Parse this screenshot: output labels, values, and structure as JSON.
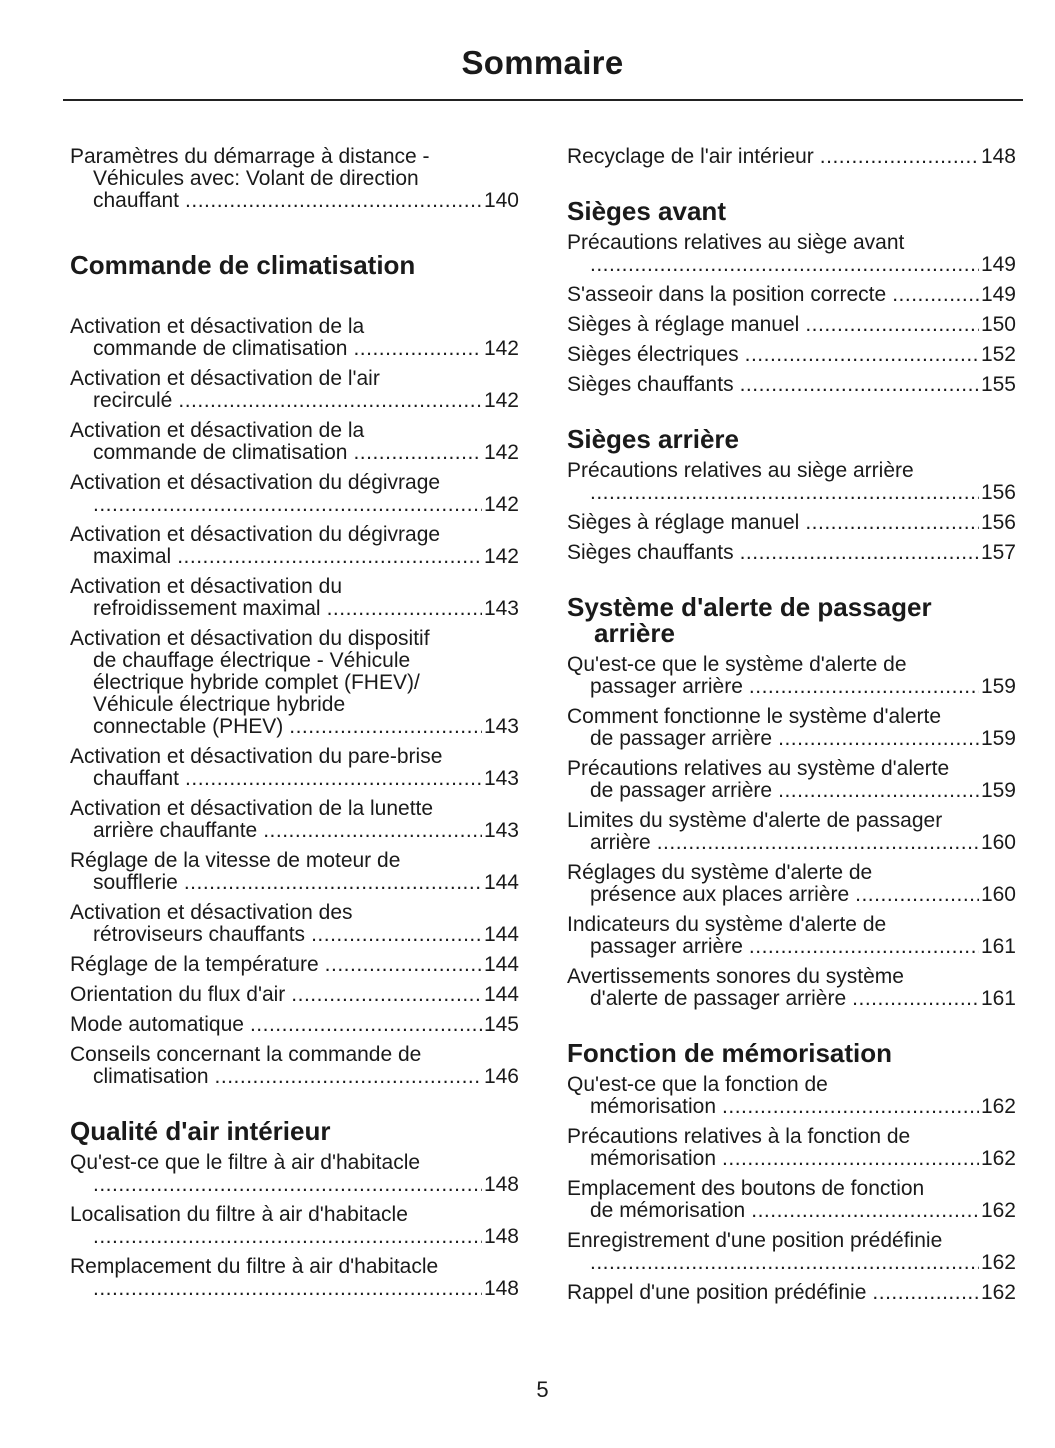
{
  "title": "Sommaire",
  "page_number": "5",
  "left": [
    {
      "type": "entry",
      "lines": [
        "Paramètres du démarrage à distance -",
        "Véhicules avec: Volant de direction",
        "chauffant"
      ],
      "page": "140"
    },
    {
      "type": "heading",
      "lines": [
        "Commande de climatisation"
      ]
    },
    {
      "type": "entry",
      "lines": [
        "Activation et désactivation de la",
        "commande de climatisation"
      ],
      "page": "142"
    },
    {
      "type": "entry",
      "lines": [
        "Activation et désactivation de l'air",
        "recirculé"
      ],
      "page": "142"
    },
    {
      "type": "entry",
      "lines": [
        "Activation et désactivation de la",
        "commande de climatisation"
      ],
      "page": "142"
    },
    {
      "type": "entry",
      "lines": [
        "Activation et désactivation du dégivrage",
        ""
      ],
      "page": "142"
    },
    {
      "type": "entry",
      "lines": [
        "Activation et désactivation du dégivrage",
        "maximal"
      ],
      "page": "142"
    },
    {
      "type": "entry",
      "lines": [
        "Activation et désactivation du",
        "refroidissement maximal"
      ],
      "page": "143"
    },
    {
      "type": "entry",
      "lines": [
        "Activation et désactivation du dispositif",
        "de chauffage électrique - Véhicule",
        "électrique hybride complet (FHEV)/",
        "Véhicule électrique hybride",
        "connectable (PHEV)"
      ],
      "page": "143"
    },
    {
      "type": "entry",
      "lines": [
        "Activation et désactivation du pare-brise",
        "chauffant"
      ],
      "page": "143"
    },
    {
      "type": "entry",
      "lines": [
        "Activation et désactivation de la lunette",
        "arrière chauffante"
      ],
      "page": "143"
    },
    {
      "type": "entry",
      "lines": [
        "Réglage de la vitesse de moteur de",
        "soufflerie"
      ],
      "page": "144"
    },
    {
      "type": "entry",
      "lines": [
        "Activation et désactivation des",
        "rétroviseurs chauffants"
      ],
      "page": "144"
    },
    {
      "type": "entry",
      "lines": [
        "Réglage de la température"
      ],
      "page": "144"
    },
    {
      "type": "entry",
      "lines": [
        "Orientation du flux d'air"
      ],
      "page": "144"
    },
    {
      "type": "entry",
      "lines": [
        "Mode automatique"
      ],
      "page": "145"
    },
    {
      "type": "entry",
      "lines": [
        "Conseils concernant la commande de",
        "climatisation"
      ],
      "page": "146"
    },
    {
      "type": "heading",
      "lines": [
        "Qualité d'air intérieur"
      ]
    },
    {
      "type": "entry",
      "lines": [
        "Qu'est-ce que le filtre à air d'habitacle",
        ""
      ],
      "page": "148"
    },
    {
      "type": "entry",
      "lines": [
        "Localisation du filtre à air d'habitacle",
        ""
      ],
      "page": "148"
    },
    {
      "type": "entry",
      "lines": [
        "Remplacement du filtre à air d'habitacle",
        ""
      ],
      "page": "148"
    }
  ],
  "right": [
    {
      "type": "entry",
      "lines": [
        "Recyclage de l'air intérieur"
      ],
      "page": "148"
    },
    {
      "type": "heading",
      "lines": [
        "Sièges avant"
      ]
    },
    {
      "type": "entry",
      "lines": [
        "Précautions relatives au siège avant",
        ""
      ],
      "page": "149"
    },
    {
      "type": "entry",
      "lines": [
        "S'asseoir dans la position correcte"
      ],
      "page": "149"
    },
    {
      "type": "entry",
      "lines": [
        "Sièges à réglage manuel"
      ],
      "page": "150"
    },
    {
      "type": "entry",
      "lines": [
        "Sièges électriques"
      ],
      "page": "152"
    },
    {
      "type": "entry",
      "lines": [
        "Sièges chauffants"
      ],
      "page": "155"
    },
    {
      "type": "heading",
      "lines": [
        "Sièges arrière"
      ]
    },
    {
      "type": "entry",
      "lines": [
        "Précautions relatives au siège arrière",
        ""
      ],
      "page": "156"
    },
    {
      "type": "entry",
      "lines": [
        "Sièges à réglage manuel"
      ],
      "page": "156"
    },
    {
      "type": "entry",
      "lines": [
        "Sièges chauffants"
      ],
      "page": "157"
    },
    {
      "type": "heading",
      "lines": [
        "Système d'alerte de passager",
        "arrière"
      ]
    },
    {
      "type": "entry",
      "lines": [
        "Qu'est-ce que le système d'alerte de",
        "passager arrière"
      ],
      "page": "159"
    },
    {
      "type": "entry",
      "lines": [
        "Comment fonctionne le système d'alerte",
        "de passager arrière"
      ],
      "page": "159"
    },
    {
      "type": "entry",
      "lines": [
        "Précautions relatives au système d'alerte",
        "de passager arrière"
      ],
      "page": "159"
    },
    {
      "type": "entry",
      "lines": [
        "Limites du système d'alerte de passager",
        "arrière"
      ],
      "page": "160"
    },
    {
      "type": "entry",
      "lines": [
        "Réglages du système d'alerte de",
        "présence aux places arrière"
      ],
      "page": "160"
    },
    {
      "type": "entry",
      "lines": [
        "Indicateurs du système d'alerte de",
        "passager arrière"
      ],
      "page": "161"
    },
    {
      "type": "entry",
      "lines": [
        "Avertissements sonores du système",
        "d'alerte de passager arrière"
      ],
      "page": "161"
    },
    {
      "type": "heading",
      "lines": [
        "Fonction de mémorisation"
      ]
    },
    {
      "type": "entry",
      "lines": [
        "Qu'est-ce que la fonction de",
        "mémorisation"
      ],
      "page": "162"
    },
    {
      "type": "entry",
      "lines": [
        "Précautions relatives à la fonction de",
        "mémorisation"
      ],
      "page": "162"
    },
    {
      "type": "entry",
      "lines": [
        "Emplacement des boutons de fonction",
        "de mémorisation"
      ],
      "page": "162"
    },
    {
      "type": "entry",
      "lines": [
        "Enregistrement d'une position prédéfinie",
        ""
      ],
      "page": "162"
    },
    {
      "type": "entry",
      "lines": [
        "Rappel d'une position prédéfinie"
      ],
      "page": "162"
    }
  ]
}
